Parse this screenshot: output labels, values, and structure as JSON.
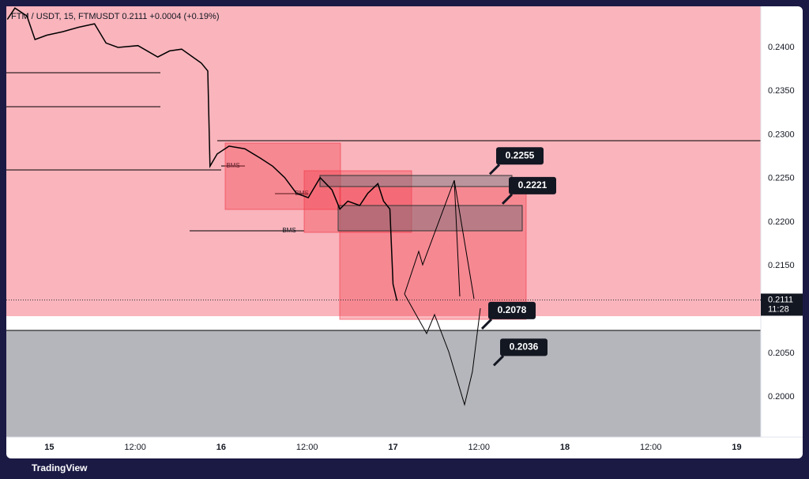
{
  "chart_data": {
    "type": "line",
    "title": "FTM / USDT, 15, FTMUSDT  0.2111  +0.0004 (+0.19%)",
    "x": [
      14.756,
      14.8,
      14.87,
      14.917,
      14.986,
      15.078,
      15.17,
      15.263,
      15.33,
      15.4,
      15.516,
      15.631,
      15.7,
      15.77,
      15.885,
      15.922,
      15.935,
      15.977,
      16.046,
      16.138,
      16.23,
      16.3,
      16.37,
      16.438,
      16.507,
      16.576,
      16.645,
      16.691,
      16.737,
      16.806,
      16.853,
      16.912,
      16.945,
      16.982,
      17.0,
      17.023
    ],
    "values": [
      0.2432,
      0.2445,
      0.2436,
      0.2409,
      0.2414,
      0.2418,
      0.2423,
      0.2427,
      0.2405,
      0.24,
      0.2402,
      0.2389,
      0.2396,
      0.2398,
      0.2382,
      0.2373,
      0.2264,
      0.2278,
      0.2287,
      0.2284,
      0.2273,
      0.2264,
      0.2251,
      0.2233,
      0.2228,
      0.2251,
      0.2237,
      0.2215,
      0.2224,
      0.2219,
      0.2233,
      0.2244,
      0.2224,
      0.2215,
      0.2129,
      0.211
    ],
    "color": "#000000",
    "xlim": [
      14.75,
      19.14
    ],
    "xticks": [
      15,
      {
        "value": 15.5,
        "label": "12:00"
      },
      16,
      {
        "value": 16.5,
        "label": "12:00"
      },
      17,
      {
        "value": 17.5,
        "label": "12:00"
      },
      18,
      {
        "value": 18.5,
        "label": "12:00"
      },
      19
    ],
    "ylim": [
      0.1954,
      0.2447
    ],
    "yticks": [
      {
        "value": 0.2,
        "label": "0.2000"
      },
      {
        "value": 0.205,
        "label": "0.2050"
      },
      {
        "value": 0.21,
        "label": "0.2100"
      },
      {
        "value": 0.215,
        "label": "0.2150"
      },
      {
        "value": 0.22,
        "label": "0.2200"
      },
      {
        "value": 0.225,
        "label": "0.2250"
      },
      {
        "value": 0.23,
        "label": "0.2300"
      },
      {
        "value": 0.235,
        "label": "0.2350"
      },
      {
        "value": 0.24,
        "label": "0.2400"
      }
    ],
    "annotations": [
      0.2255,
      0.2221,
      0.2078,
      0.2036
    ],
    "bms_labels": [
      "BMS",
      "BMS",
      "BMS"
    ],
    "last_price": 0.2111,
    "last_time": "11:28",
    "grid": false,
    "brand": "TradingView"
  }
}
